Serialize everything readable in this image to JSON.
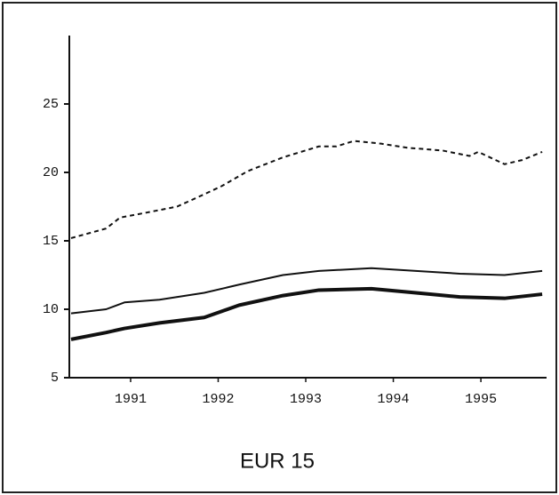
{
  "chart_data": {
    "type": "line",
    "caption": "EUR 15",
    "xlim": [
      1990.3,
      1995.75
    ],
    "xticks": [
      1991,
      1992,
      1993,
      1994,
      1995
    ],
    "ylim": [
      5,
      30
    ],
    "yticks": [
      5,
      10,
      15,
      20,
      25
    ],
    "series": [
      {
        "color": "#111",
        "dash": true,
        "width": 2,
        "x": [
          1990.32,
          1990.72,
          1990.88,
          1991.13,
          1991.53,
          1991.84,
          1992.04,
          1992.34,
          1992.74,
          1993.15,
          1993.35,
          1993.55,
          1993.86,
          1994.16,
          1994.56,
          1994.87,
          1994.97,
          1995.27,
          1995.47,
          1995.7
        ],
        "values": [
          15.2,
          15.9,
          16.7,
          17.0,
          17.5,
          18.4,
          19.0,
          20.1,
          21.1,
          21.9,
          21.9,
          22.3,
          22.1,
          21.8,
          21.6,
          21.2,
          21.5,
          20.6,
          20.9,
          21.5
        ]
      },
      {
        "color": "#111",
        "dash": false,
        "width": 2,
        "x": [
          1990.32,
          1990.72,
          1990.93,
          1991.33,
          1991.84,
          1992.24,
          1992.74,
          1993.15,
          1993.75,
          1994.26,
          1994.76,
          1995.27,
          1995.7
        ],
        "values": [
          9.7,
          10.0,
          10.5,
          10.7,
          11.2,
          11.8,
          12.5,
          12.8,
          13.0,
          12.8,
          12.6,
          12.5,
          12.8
        ]
      },
      {
        "color": "#111",
        "dash": false,
        "width": 4,
        "x": [
          1990.32,
          1990.72,
          1990.93,
          1991.33,
          1991.84,
          1992.24,
          1992.74,
          1993.15,
          1993.75,
          1994.26,
          1994.76,
          1995.27,
          1995.7
        ],
        "values": [
          7.8,
          8.3,
          8.6,
          9.0,
          9.4,
          10.3,
          11.0,
          11.4,
          11.5,
          11.2,
          10.9,
          10.8,
          11.1
        ]
      }
    ]
  }
}
